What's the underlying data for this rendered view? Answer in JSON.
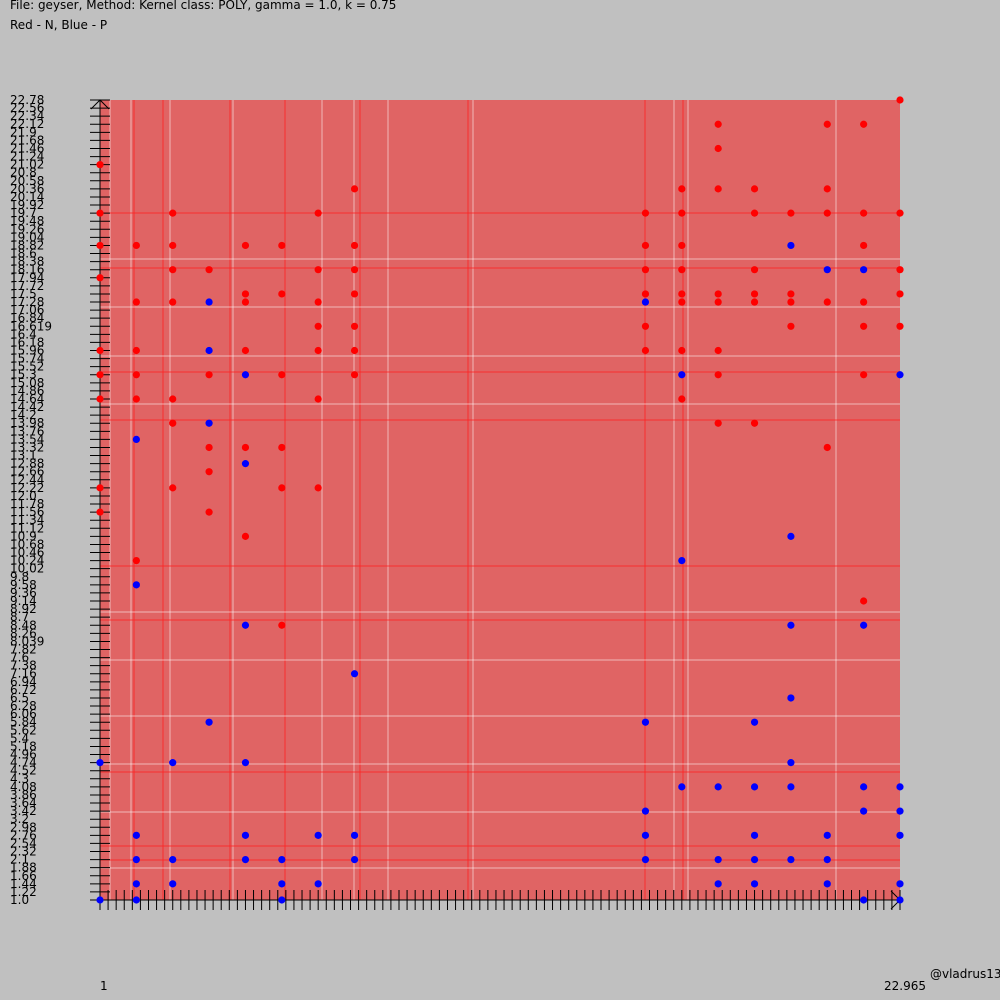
{
  "header": {
    "title": "File: geyser, Method: Kernel class: POLY, gamma = 1.0, k = 0.75",
    "legend": "Red - N, Blue - P"
  },
  "watermark": "@vladrus13",
  "colors": {
    "background": "#c0c0c0",
    "region_n": "#e06464",
    "point_n": "#ff0000",
    "point_p": "#0000ff",
    "grid_light": "#ffffff",
    "grid_red": "#ff2020"
  },
  "chart_data": {
    "type": "scatter",
    "title": "File: geyser, Method: Kernel class: POLY, gamma = 1.0, k = 0.75",
    "xlim": [
      1,
      23
    ],
    "ylim": [
      1.0,
      22.78
    ],
    "x_tick_label_first": "1",
    "x_tick_label_last": "22.965",
    "y_ticks": [
      "1.0",
      "1.22",
      "1.44",
      "1.66",
      "1.88",
      "2.1",
      "2.32",
      "2.54",
      "2.76",
      "2.98",
      "3.2",
      "3.42",
      "3.64",
      "3.86",
      "4.08",
      "4.3",
      "4.52",
      "4.74",
      "4.96",
      "5.18",
      "5.4",
      "5.62",
      "5.84",
      "6.06",
      "6.28",
      "6.5",
      "6.72",
      "6.94",
      "7.16",
      "7.38",
      "7.6",
      "7.82",
      "8.039",
      "8.26",
      "8.48",
      "8.7",
      "8.92",
      "9.14",
      "9.36",
      "9.58",
      "9.8",
      "10.02",
      "10.24",
      "10.46",
      "10.68",
      "10.9",
      "11.12",
      "11.34",
      "11.56",
      "11.78",
      "12.0",
      "12.22",
      "12.44",
      "12.66",
      "12.88",
      "13.1",
      "13.32",
      "13.54",
      "13.76",
      "13.98",
      "14.2",
      "14.42",
      "14.64",
      "14.86",
      "15.08",
      "15.3",
      "15.52",
      "15.74",
      "15.96",
      "16.18",
      "16.4",
      "16.619",
      "16.84",
      "17.06",
      "17.28",
      "17.5",
      "17.72",
      "17.94",
      "18.16",
      "18.38",
      "18.6",
      "18.82",
      "19.04",
      "19.26",
      "19.48",
      "19.7",
      "19.92",
      "20.14",
      "20.36",
      "20.58",
      "20.8",
      "21.02",
      "21.24",
      "21.46",
      "21.68",
      "21.9",
      "22.12",
      "22.34",
      "22.56",
      "22.78"
    ],
    "series": [
      {
        "name": "N",
        "color": "#ff0000",
        "points": [
          [
            1.0,
            21.02
          ],
          [
            1.0,
            19.7
          ],
          [
            1.0,
            18.82
          ],
          [
            1.0,
            17.94
          ],
          [
            1.0,
            15.96
          ],
          [
            1.0,
            15.3
          ],
          [
            1.0,
            14.64
          ],
          [
            1.0,
            12.22
          ],
          [
            1.0,
            11.56
          ],
          [
            2.0,
            18.82
          ],
          [
            2.0,
            17.28
          ],
          [
            2.0,
            15.96
          ],
          [
            2.0,
            15.3
          ],
          [
            2.0,
            14.64
          ],
          [
            2.0,
            10.24
          ],
          [
            3.0,
            19.7
          ],
          [
            3.0,
            18.82
          ],
          [
            3.0,
            18.16
          ],
          [
            3.0,
            17.28
          ],
          [
            3.0,
            14.64
          ],
          [
            3.0,
            13.98
          ],
          [
            3.0,
            12.22
          ],
          [
            4.0,
            18.16
          ],
          [
            4.0,
            15.3
          ],
          [
            4.0,
            13.32
          ],
          [
            4.0,
            12.66
          ],
          [
            4.0,
            11.56
          ],
          [
            5.0,
            18.82
          ],
          [
            5.0,
            17.5
          ],
          [
            5.0,
            17.28
          ],
          [
            5.0,
            15.96
          ],
          [
            5.0,
            13.32
          ],
          [
            5.0,
            10.9
          ],
          [
            6.0,
            18.82
          ],
          [
            6.0,
            17.5
          ],
          [
            6.0,
            15.3
          ],
          [
            6.0,
            13.32
          ],
          [
            6.0,
            12.22
          ],
          [
            6.0,
            8.48
          ],
          [
            7.0,
            19.7
          ],
          [
            7.0,
            18.16
          ],
          [
            7.0,
            17.28
          ],
          [
            7.0,
            16.619
          ],
          [
            7.0,
            15.96
          ],
          [
            7.0,
            14.64
          ],
          [
            7.0,
            12.22
          ],
          [
            8.0,
            20.36
          ],
          [
            8.0,
            18.82
          ],
          [
            8.0,
            18.16
          ],
          [
            8.0,
            17.5
          ],
          [
            8.0,
            16.619
          ],
          [
            8.0,
            15.96
          ],
          [
            8.0,
            15.3
          ],
          [
            16.0,
            19.7
          ],
          [
            16.0,
            18.82
          ],
          [
            16.0,
            18.16
          ],
          [
            16.0,
            17.5
          ],
          [
            16.0,
            16.619
          ],
          [
            16.0,
            15.96
          ],
          [
            17.0,
            20.36
          ],
          [
            17.0,
            19.7
          ],
          [
            17.0,
            18.82
          ],
          [
            17.0,
            18.16
          ],
          [
            17.0,
            17.5
          ],
          [
            17.0,
            17.28
          ],
          [
            17.0,
            15.96
          ],
          [
            17.0,
            14.64
          ],
          [
            18.0,
            22.12
          ],
          [
            18.0,
            21.46
          ],
          [
            18.0,
            20.36
          ],
          [
            18.0,
            17.5
          ],
          [
            18.0,
            17.28
          ],
          [
            18.0,
            15.96
          ],
          [
            18.0,
            15.3
          ],
          [
            18.0,
            13.98
          ],
          [
            19.0,
            20.36
          ],
          [
            19.0,
            19.7
          ],
          [
            19.0,
            18.16
          ],
          [
            19.0,
            17.5
          ],
          [
            19.0,
            17.28
          ],
          [
            19.0,
            13.98
          ],
          [
            20.0,
            19.7
          ],
          [
            20.0,
            17.5
          ],
          [
            20.0,
            17.28
          ],
          [
            20.0,
            16.619
          ],
          [
            21.0,
            22.12
          ],
          [
            21.0,
            20.36
          ],
          [
            21.0,
            19.7
          ],
          [
            21.0,
            17.28
          ],
          [
            21.0,
            13.32
          ],
          [
            22.0,
            22.12
          ],
          [
            22.0,
            19.7
          ],
          [
            22.0,
            18.82
          ],
          [
            22.0,
            17.28
          ],
          [
            22.0,
            16.619
          ],
          [
            22.0,
            15.3
          ],
          [
            22.0,
            9.14
          ],
          [
            23.0,
            22.78
          ],
          [
            23.0,
            19.7
          ],
          [
            23.0,
            18.16
          ],
          [
            23.0,
            17.5
          ],
          [
            23.0,
            16.619
          ]
        ]
      },
      {
        "name": "P",
        "color": "#0000ff",
        "points": [
          [
            1.0,
            4.74
          ],
          [
            1.0,
            1.0
          ],
          [
            2.0,
            13.54
          ],
          [
            2.0,
            9.58
          ],
          [
            2.0,
            2.76
          ],
          [
            2.0,
            2.1
          ],
          [
            2.0,
            1.44
          ],
          [
            2.0,
            1.0
          ],
          [
            3.0,
            4.74
          ],
          [
            3.0,
            2.1
          ],
          [
            3.0,
            1.44
          ],
          [
            4.0,
            17.28
          ],
          [
            4.0,
            15.96
          ],
          [
            4.0,
            13.98
          ],
          [
            4.0,
            5.84
          ],
          [
            5.0,
            15.3
          ],
          [
            5.0,
            12.88
          ],
          [
            5.0,
            8.48
          ],
          [
            5.0,
            4.74
          ],
          [
            5.0,
            2.76
          ],
          [
            5.0,
            2.1
          ],
          [
            6.0,
            2.1
          ],
          [
            6.0,
            1.44
          ],
          [
            6.0,
            1.0
          ],
          [
            7.0,
            2.76
          ],
          [
            7.0,
            1.44
          ],
          [
            8.0,
            7.16
          ],
          [
            8.0,
            2.76
          ],
          [
            8.0,
            2.1
          ],
          [
            16.0,
            17.28
          ],
          [
            16.0,
            5.84
          ],
          [
            16.0,
            3.42
          ],
          [
            16.0,
            2.76
          ],
          [
            16.0,
            2.1
          ],
          [
            17.0,
            15.3
          ],
          [
            17.0,
            10.24
          ],
          [
            17.0,
            4.08
          ],
          [
            18.0,
            4.08
          ],
          [
            18.0,
            2.1
          ],
          [
            18.0,
            1.44
          ],
          [
            19.0,
            5.84
          ],
          [
            19.0,
            4.08
          ],
          [
            19.0,
            2.76
          ],
          [
            19.0,
            2.1
          ],
          [
            19.0,
            1.44
          ],
          [
            20.0,
            18.82
          ],
          [
            20.0,
            10.9
          ],
          [
            20.0,
            8.48
          ],
          [
            20.0,
            6.5
          ],
          [
            20.0,
            4.74
          ],
          [
            20.0,
            4.08
          ],
          [
            20.0,
            2.1
          ],
          [
            21.0,
            18.16
          ],
          [
            21.0,
            2.76
          ],
          [
            21.0,
            2.1
          ],
          [
            21.0,
            1.44
          ],
          [
            22.0,
            18.16
          ],
          [
            22.0,
            8.48
          ],
          [
            22.0,
            4.08
          ],
          [
            22.0,
            3.42
          ],
          [
            22.0,
            1.0
          ],
          [
            23.0,
            15.3
          ],
          [
            23.0,
            4.08
          ],
          [
            23.0,
            3.42
          ],
          [
            23.0,
            2.76
          ],
          [
            23.0,
            1.44
          ],
          [
            23.0,
            1.0
          ]
        ]
      }
    ]
  }
}
